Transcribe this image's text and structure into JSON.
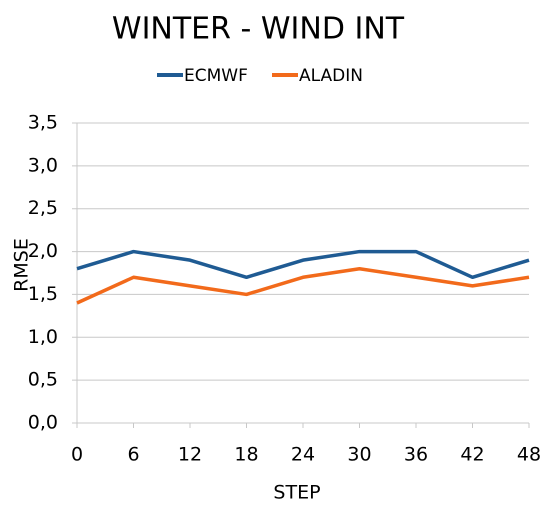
{
  "chart_data": {
    "type": "line",
    "title": "WINTER - WIND INT",
    "x_label": "STEP",
    "y_label": "RMSE",
    "x": [
      0,
      6,
      12,
      18,
      24,
      30,
      36,
      42,
      48
    ],
    "series": [
      {
        "name": "ECMWF",
        "color": "#1f5b93",
        "values": [
          1.8,
          2.0,
          1.9,
          1.7,
          1.9,
          2.0,
          2.0,
          1.7,
          1.9
        ]
      },
      {
        "name": "ALADIN",
        "color": "#f26a1b",
        "values": [
          1.4,
          1.7,
          1.6,
          1.5,
          1.7,
          1.8,
          1.7,
          1.6,
          1.7
        ]
      }
    ],
    "xlim": [
      0,
      48
    ],
    "xticks": [
      0,
      6,
      12,
      18,
      24,
      30,
      36,
      42,
      48
    ],
    "ylim": [
      0,
      3.5
    ],
    "yticks": [
      {
        "value": 0,
        "label": "0,0"
      },
      {
        "value": 0.5,
        "label": "0,5"
      },
      {
        "value": 1,
        "label": "1,0"
      },
      {
        "value": 1.5,
        "label": "1,5"
      },
      {
        "value": 2,
        "label": "2,0"
      },
      {
        "value": 2.5,
        "label": "2,5"
      },
      {
        "value": 3,
        "label": "3,0"
      },
      {
        "value": 3.5,
        "label": "3,5"
      }
    ],
    "grid": true,
    "legend": "top"
  }
}
